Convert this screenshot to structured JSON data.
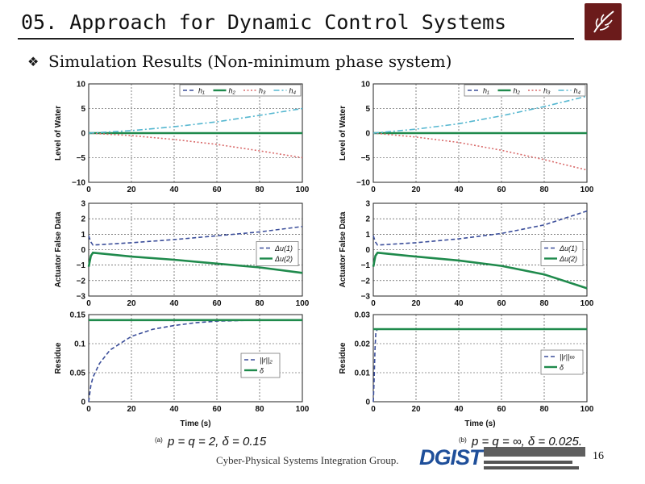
{
  "slide": {
    "title": "05. Approach for Dynamic Control Systems",
    "bullet_icon": "diamond-bullet-icon",
    "subtitle": "Simulation Results (Non-minimum phase system)",
    "footer": "Cyber-Physical Systems Integration Group.",
    "logo_text": "DGIST",
    "page_number": "16",
    "logo_icon": "university-emblem-icon"
  },
  "colors": {
    "h1": "#3b4e9a",
    "h2": "#1f8a4c",
    "h3": "#d96b6b",
    "h4": "#55b7d0",
    "du1": "#3b4e9a",
    "du2": "#1f8a4c",
    "residue": "#3b4e9a",
    "threshold": "#1f8a4c",
    "grid": "#000000"
  },
  "chart_data": [
    {
      "type": "line",
      "panel": "a",
      "row": 1,
      "ylabel": "Level of Water",
      "xlabel": "",
      "xlim": [
        0,
        100
      ],
      "ylim": [
        -10,
        10
      ],
      "xticks": [
        "0",
        "20",
        "40",
        "60",
        "80",
        "100"
      ],
      "yticks": [
        "−10",
        "−5",
        "0",
        "5",
        "10"
      ],
      "legend_position": "top-right",
      "series": [
        {
          "name": "h₁",
          "key": "h1",
          "style": "dashed",
          "x": [
            0,
            20,
            40,
            60,
            80,
            100
          ],
          "y": [
            0,
            0,
            0,
            0,
            0,
            0
          ]
        },
        {
          "name": "h₂",
          "key": "h2",
          "style": "solid",
          "x": [
            0,
            20,
            40,
            60,
            80,
            100
          ],
          "y": [
            0,
            0,
            0,
            0,
            0,
            0
          ]
        },
        {
          "name": "h₃",
          "key": "h3",
          "style": "dotted",
          "x": [
            0,
            20,
            40,
            60,
            80,
            100
          ],
          "y": [
            0,
            -0.5,
            -1.3,
            -2.3,
            -3.6,
            -5
          ]
        },
        {
          "name": "h₄",
          "key": "h4",
          "style": "dashdot",
          "x": [
            0,
            20,
            40,
            60,
            80,
            100
          ],
          "y": [
            0,
            0.5,
            1.3,
            2.3,
            3.6,
            5
          ]
        }
      ]
    },
    {
      "type": "line",
      "panel": "b",
      "row": 1,
      "ylabel": "Level of Water",
      "xlabel": "",
      "xlim": [
        0,
        100
      ],
      "ylim": [
        -10,
        10
      ],
      "xticks": [
        "0",
        "20",
        "40",
        "60",
        "80",
        "100"
      ],
      "yticks": [
        "−10",
        "−5",
        "0",
        "5",
        "10"
      ],
      "legend_position": "top-right",
      "series": [
        {
          "name": "h₁",
          "key": "h1",
          "style": "dashed",
          "x": [
            0,
            20,
            40,
            60,
            80,
            100
          ],
          "y": [
            0,
            0,
            0,
            0,
            0,
            0
          ]
        },
        {
          "name": "h₂",
          "key": "h2",
          "style": "solid",
          "x": [
            0,
            20,
            40,
            60,
            80,
            100
          ],
          "y": [
            0,
            0,
            0,
            0,
            0,
            0
          ]
        },
        {
          "name": "h₃",
          "key": "h3",
          "style": "dotted",
          "x": [
            0,
            20,
            40,
            60,
            80,
            100
          ],
          "y": [
            0,
            -0.8,
            -1.9,
            -3.5,
            -5.4,
            -7.5
          ]
        },
        {
          "name": "h₄",
          "key": "h4",
          "style": "dashdot",
          "x": [
            0,
            20,
            40,
            60,
            80,
            100
          ],
          "y": [
            0,
            0.8,
            1.9,
            3.5,
            5.4,
            7.5
          ]
        }
      ]
    },
    {
      "type": "line",
      "panel": "a",
      "row": 2,
      "ylabel": "Actuator False Data",
      "xlabel": "",
      "xlim": [
        0,
        100
      ],
      "ylim": [
        -3,
        3
      ],
      "xticks": [
        "0",
        "20",
        "40",
        "60",
        "80",
        "100"
      ],
      "yticks": [
        "−3",
        "−2",
        "−1",
        "0",
        "1",
        "2",
        "3"
      ],
      "legend_position": "right",
      "series": [
        {
          "name": "Δu(1)",
          "key": "du1",
          "style": "dashed",
          "x": [
            0,
            1,
            2,
            20,
            40,
            60,
            80,
            100
          ],
          "y": [
            0.9,
            0.5,
            0.3,
            0.45,
            0.65,
            0.9,
            1.15,
            1.5
          ]
        },
        {
          "name": "Δu(2)",
          "key": "du2",
          "style": "solid",
          "x": [
            0,
            1,
            2,
            20,
            40,
            60,
            80,
            100
          ],
          "y": [
            -1.1,
            -0.4,
            -0.2,
            -0.45,
            -0.65,
            -0.9,
            -1.15,
            -1.5
          ]
        }
      ]
    },
    {
      "type": "line",
      "panel": "b",
      "row": 2,
      "ylabel": "Actuator False Data",
      "xlabel": "",
      "xlim": [
        0,
        100
      ],
      "ylim": [
        -3,
        3
      ],
      "xticks": [
        "0",
        "20",
        "40",
        "60",
        "80",
        "100"
      ],
      "yticks": [
        "−3",
        "−2",
        "−1",
        "0",
        "1",
        "2",
        "3"
      ],
      "legend_position": "right",
      "series": [
        {
          "name": "Δu(1)",
          "key": "du1",
          "style": "dashed",
          "x": [
            0,
            1,
            2,
            20,
            40,
            60,
            80,
            100
          ],
          "y": [
            0.9,
            0.5,
            0.3,
            0.45,
            0.7,
            1.05,
            1.6,
            2.5
          ]
        },
        {
          "name": "Δu(2)",
          "key": "du2",
          "style": "solid",
          "x": [
            0,
            1,
            2,
            20,
            40,
            60,
            80,
            100
          ],
          "y": [
            -1.1,
            -0.4,
            -0.2,
            -0.45,
            -0.7,
            -1.05,
            -1.6,
            -2.5
          ]
        }
      ]
    },
    {
      "type": "line",
      "panel": "a",
      "row": 3,
      "ylabel": "Residue",
      "xlabel": "Time (s)",
      "xlim": [
        0,
        100
      ],
      "ylim": [
        0,
        0.16
      ],
      "xticks": [
        "0",
        "20",
        "40",
        "60",
        "80",
        "100"
      ],
      "yticks": [
        "0",
        "0.05",
        "0.1",
        "0.15"
      ],
      "legend_position": "bottom-right",
      "caption_label": "(a)",
      "caption": "p = q = 2,  δ = 0.15",
      "series": [
        {
          "name": "||r||₂",
          "key": "residue",
          "style": "dashed",
          "x": [
            0,
            1,
            2,
            5,
            10,
            20,
            30,
            40,
            50,
            60,
            80
          ],
          "y": [
            0,
            0.03,
            0.045,
            0.07,
            0.095,
            0.12,
            0.133,
            0.14,
            0.145,
            0.148,
            0.15
          ]
        },
        {
          "name": "δ",
          "key": "threshold",
          "style": "solid",
          "x": [
            0,
            100
          ],
          "y": [
            0.15,
            0.15
          ]
        }
      ]
    },
    {
      "type": "line",
      "panel": "b",
      "row": 3,
      "ylabel": "Residue",
      "xlabel": "Time (s)",
      "xlim": [
        0,
        100
      ],
      "ylim": [
        0,
        0.03
      ],
      "xticks": [
        "0",
        "20",
        "40",
        "60",
        "80",
        "100"
      ],
      "yticks": [
        "0",
        "0.01",
        "0.02",
        "0.03"
      ],
      "legend_position": "right",
      "caption_label": "(b)",
      "caption": "p = q = ∞,  δ = 0.025.",
      "series": [
        {
          "name": "||r||∞",
          "key": "residue",
          "style": "dashed",
          "x": [
            0,
            0.4,
            0.8,
            1.2,
            2,
            100
          ],
          "y": [
            0,
            0.008,
            0.018,
            0.024,
            0.025,
            0.025
          ]
        },
        {
          "name": "δ",
          "key": "threshold",
          "style": "solid",
          "x": [
            0,
            100
          ],
          "y": [
            0.025,
            0.025
          ]
        }
      ]
    }
  ]
}
